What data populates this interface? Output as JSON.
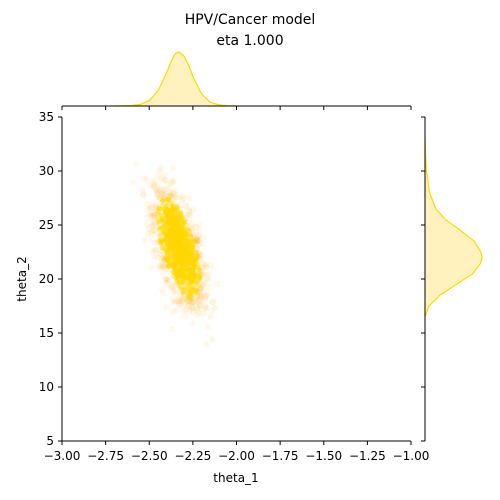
{
  "title_line1": "HPV/Cancer model",
  "title_line2": "eta 1.000",
  "colors": {
    "point": "#ffd700",
    "halo": "#ffa500",
    "kde_fill": "#fff2bf",
    "kde_line": "#ffd700"
  },
  "chart_data": {
    "type": "scatter",
    "xlabel": "theta_1",
    "ylabel": "theta_2",
    "xlim": [
      -3.0,
      -1.0
    ],
    "ylim": [
      5,
      35
    ],
    "xticks": [
      -3.0,
      -2.75,
      -2.5,
      -2.25,
      -2.0,
      -1.75,
      -1.5,
      -1.25,
      -1.0
    ],
    "xtick_labels": [
      "−3.00",
      "−2.75",
      "−2.50",
      "−2.25",
      "−2.00",
      "−1.75",
      "−1.50",
      "−1.25",
      "−1.00"
    ],
    "yticks": [
      5,
      10,
      15,
      20,
      25,
      30,
      35
    ],
    "ytick_labels": [
      "5",
      "10",
      "15",
      "20",
      "25",
      "30",
      "35"
    ],
    "distribution": {
      "x_mean": -2.33,
      "x_sd": 0.07,
      "y_mean": 22.8,
      "y_sd": 2.6,
      "correlation": -0.6
    },
    "marginal_x_kde": {
      "x": [
        -2.7,
        -2.6,
        -2.55,
        -2.5,
        -2.45,
        -2.4,
        -2.37,
        -2.35,
        -2.33,
        -2.3,
        -2.27,
        -2.25,
        -2.2,
        -2.15,
        -2.1,
        -2.05,
        -2.0
      ],
      "density": [
        0.0,
        0.01,
        0.03,
        0.1,
        0.28,
        0.62,
        0.86,
        0.97,
        1.0,
        0.92,
        0.72,
        0.55,
        0.22,
        0.07,
        0.02,
        0.005,
        0.0
      ]
    },
    "marginal_y_kde": {
      "y": [
        16.5,
        17.5,
        18.5,
        19.5,
        20.5,
        21.5,
        22.0,
        22.5,
        23.5,
        24.5,
        25.5,
        26.5,
        28.0,
        30.0,
        32.0,
        33.0
      ],
      "density": [
        0.0,
        0.07,
        0.26,
        0.55,
        0.84,
        0.98,
        1.0,
        0.98,
        0.86,
        0.62,
        0.36,
        0.19,
        0.08,
        0.025,
        0.005,
        0.0
      ]
    }
  }
}
